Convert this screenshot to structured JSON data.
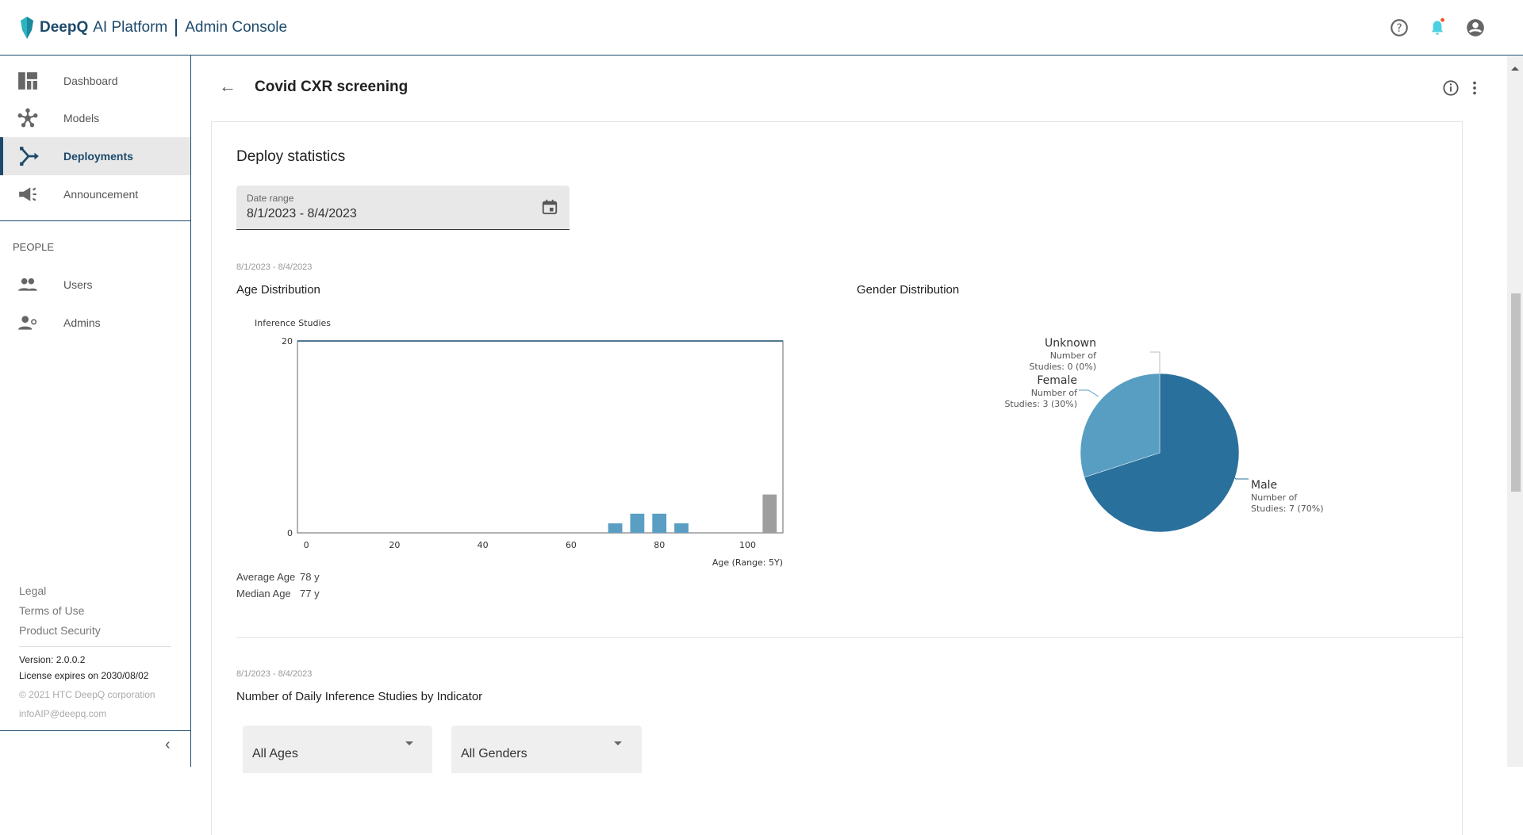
{
  "header": {
    "brand": "DeepQ",
    "product": "AI Platform",
    "console": "Admin Console"
  },
  "sidebar": {
    "items": [
      {
        "label": "Dashboard"
      },
      {
        "label": "Models"
      },
      {
        "label": "Deployments"
      },
      {
        "label": "Announcement"
      }
    ],
    "section": "PEOPLE",
    "people": [
      {
        "label": "Users"
      },
      {
        "label": "Admins"
      }
    ],
    "footer_links": [
      "Legal",
      "Terms of Use",
      "Product Security"
    ],
    "version": "Version: 2.0.0.2",
    "license": "License expires on 2030/08/02",
    "copyright": "© 2021 HTC DeepQ corporation",
    "email": "infoAIP@deepq.com"
  },
  "page": {
    "title": "Covid CXR screening",
    "section_title": "Deploy statistics",
    "date_field": {
      "label": "Date range",
      "value": "8/1/2023 - 8/4/2023"
    },
    "range_caption": "8/1/2023 - 8/4/2023",
    "age_title": "Age Distribution",
    "gender_title": "Gender Distribution",
    "avg_label": "Average Age",
    "avg_value": "78 y",
    "median_label": "Median Age",
    "median_value": "77 y",
    "daily_caption": "8/1/2023 - 8/4/2023",
    "daily_title": "Number of Daily Inference Studies by Indicator",
    "age_select": "All Ages",
    "gender_select": "All Genders"
  },
  "colors": {
    "brand": "#1d4a6b",
    "bar": "#5b9ec4",
    "bar_unknown": "#9e9e9e",
    "male": "#2a709c",
    "female": "#589ec2",
    "notification": "#f4511e",
    "bell": "#4dd0e1"
  },
  "chart_data": [
    {
      "type": "bar",
      "title": "Age Distribution",
      "ylabel": "Inference Studies",
      "xlabel": "Age (Range: 5Y)",
      "ylim": [
        0,
        20
      ],
      "xlim": [
        -2,
        108
      ],
      "yticks": [
        "0",
        "20"
      ],
      "xticks": [
        "0",
        "20",
        "40",
        "60",
        "80",
        "100"
      ],
      "bins": [
        {
          "x": 70,
          "value": 1
        },
        {
          "x": 75,
          "value": 2
        },
        {
          "x": 80,
          "value": 2
        },
        {
          "x": 85,
          "value": 1
        },
        {
          "x": 105,
          "value": 4,
          "unknown": true
        }
      ]
    },
    {
      "type": "pie",
      "title": "Gender Distribution",
      "slices": [
        {
          "label": "Male",
          "detail1": "Number of",
          "detail2": "Studies: 7 (70%)",
          "value": 7
        },
        {
          "label": "Female",
          "detail1": "Number of",
          "detail2": "Studies: 3 (30%)",
          "value": 3
        },
        {
          "label": "Unknown",
          "detail1": "Number of",
          "detail2": "Studies: 0 (0%)",
          "value": 0
        }
      ]
    }
  ]
}
